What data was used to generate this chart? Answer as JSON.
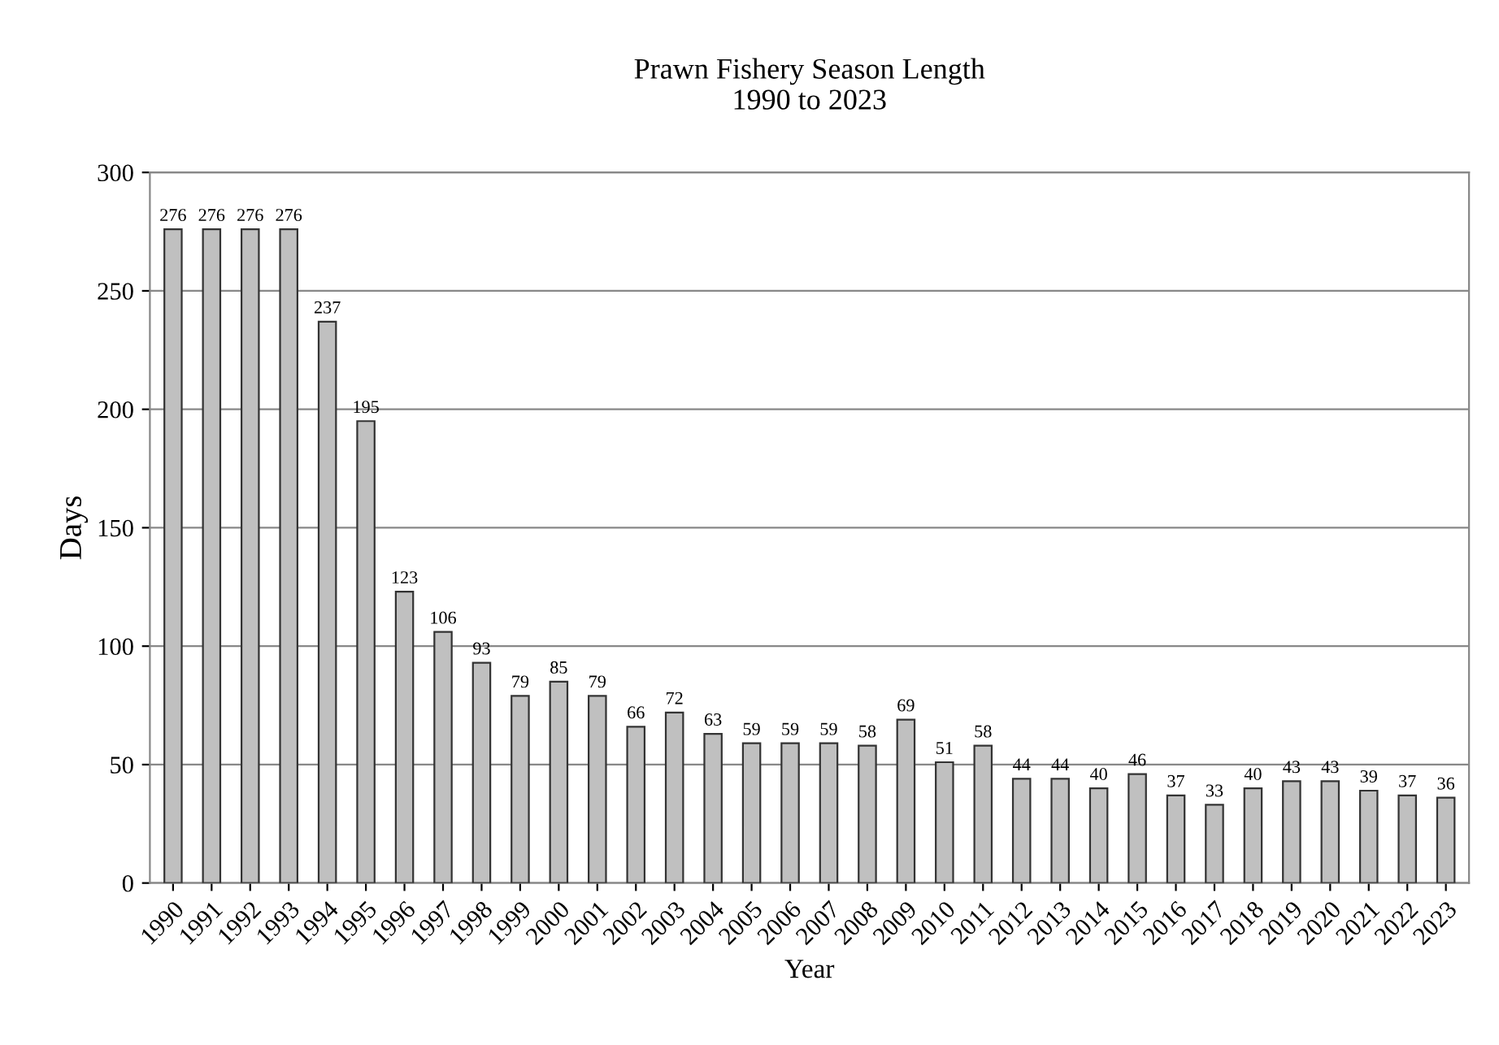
{
  "chart_data": {
    "type": "bar",
    "title": "Prawn Fishery Season Length\n1990 to 2023",
    "xlabel": "Year",
    "ylabel": "Days",
    "categories": [
      "1990",
      "1991",
      "1992",
      "1993",
      "1994",
      "1995",
      "1996",
      "1997",
      "1998",
      "1999",
      "2000",
      "2001",
      "2002",
      "2003",
      "2004",
      "2005",
      "2006",
      "2007",
      "2008",
      "2009",
      "2010",
      "2011",
      "2012",
      "2013",
      "2014",
      "2015",
      "2016",
      "2017",
      "2018",
      "2019",
      "2020",
      "2021",
      "2022",
      "2023"
    ],
    "values": [
      276,
      276,
      276,
      276,
      237,
      195,
      123,
      106,
      93,
      79,
      85,
      79,
      66,
      72,
      63,
      59,
      59,
      59,
      58,
      69,
      51,
      58,
      44,
      44,
      40,
      46,
      37,
      33,
      40,
      43,
      43,
      39,
      37,
      36
    ],
    "color": "#c0c0c0",
    "ylim": [
      0,
      300
    ],
    "yticks": [
      0,
      50,
      100,
      150,
      200,
      250,
      300
    ],
    "grid": "y",
    "data_labels": true,
    "legend": false
  }
}
